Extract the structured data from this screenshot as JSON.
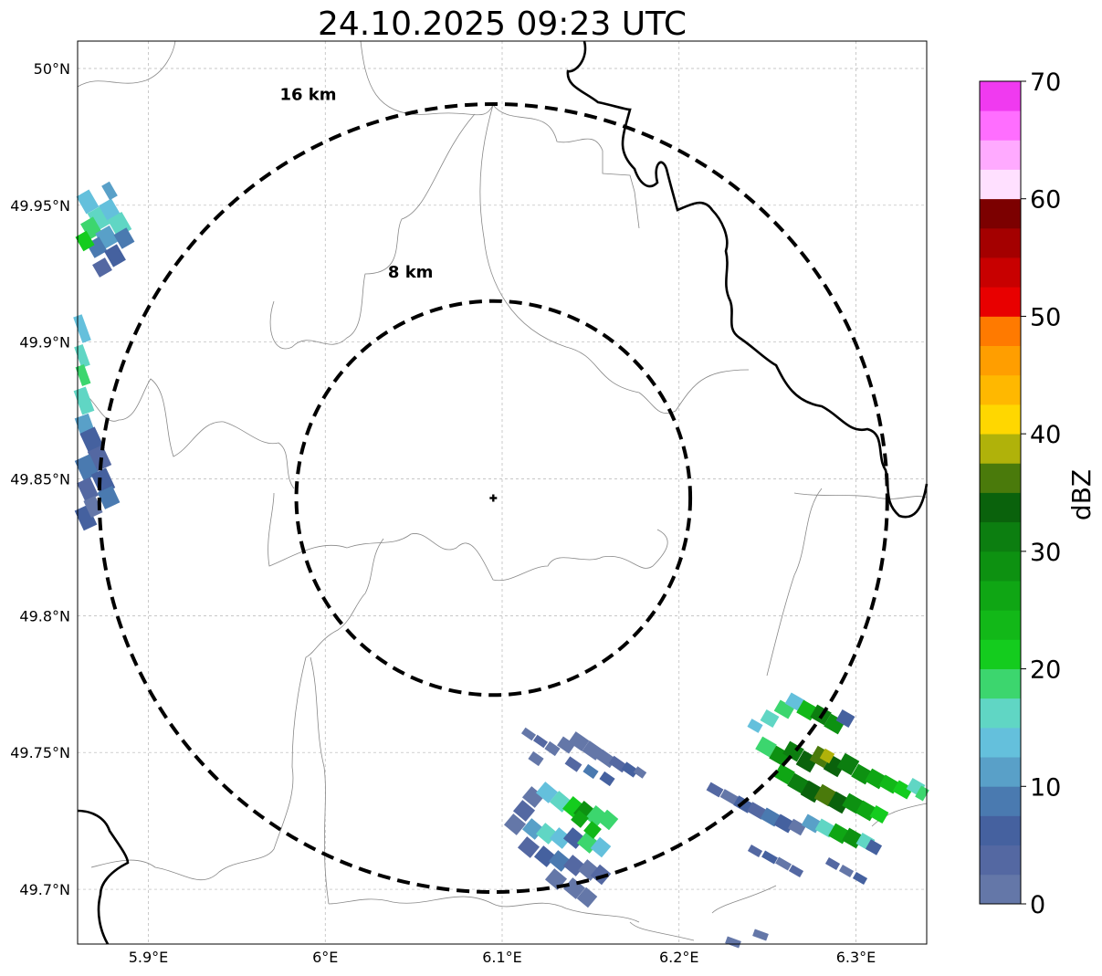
{
  "title": "24.10.2025 09:23 UTC",
  "map": {
    "lon_range": [
      5.86,
      6.34
    ],
    "lat_range": [
      49.68,
      50.01
    ],
    "center": {
      "lon": 6.095,
      "lat": 49.843
    },
    "lon_ticks": [
      {
        "value": 5.9,
        "label": "5.9°E"
      },
      {
        "value": 6.0,
        "label": "6°E"
      },
      {
        "value": 6.1,
        "label": "6.1°E"
      },
      {
        "value": 6.2,
        "label": "6.2°E"
      },
      {
        "value": 6.3,
        "label": "6.3°E"
      }
    ],
    "lat_ticks": [
      {
        "value": 50.0,
        "label": "50°N"
      },
      {
        "value": 49.95,
        "label": "49.95°N"
      },
      {
        "value": 49.9,
        "label": "49.9°N"
      },
      {
        "value": 49.85,
        "label": "49.85°N"
      },
      {
        "value": 49.8,
        "label": "49.8°N"
      },
      {
        "value": 49.75,
        "label": "49.75°N"
      },
      {
        "value": 49.7,
        "label": "49.7°N"
      }
    ],
    "grid": true,
    "range_rings": [
      {
        "radius_km": 8,
        "label": "8 km"
      },
      {
        "radius_km": 16,
        "label": "16 km"
      }
    ]
  },
  "colorbar": {
    "label": "dBZ",
    "min": 0,
    "max": 70,
    "step": 2.5,
    "ticks": [
      0,
      10,
      20,
      30,
      40,
      50,
      60,
      70
    ],
    "colors": [
      "#6477a8",
      "#5468a2",
      "#45619f",
      "#4a7ab0",
      "#59a0c8",
      "#64c0dc",
      "#60d6c4",
      "#3cd66e",
      "#14cc1e",
      "#12b818",
      "#0fa614",
      "#0d9111",
      "#0c7e10",
      "#0a620c",
      "#4a7a0b",
      "#b0b20a",
      "#ffd700",
      "#ffb800",
      "#ff9e00",
      "#ff7a00",
      "#e80000",
      "#c80000",
      "#a40000",
      "#7c0000",
      "#ffe0ff",
      "#ffaaff",
      "#ff6eff",
      "#f03af0"
    ]
  }
}
